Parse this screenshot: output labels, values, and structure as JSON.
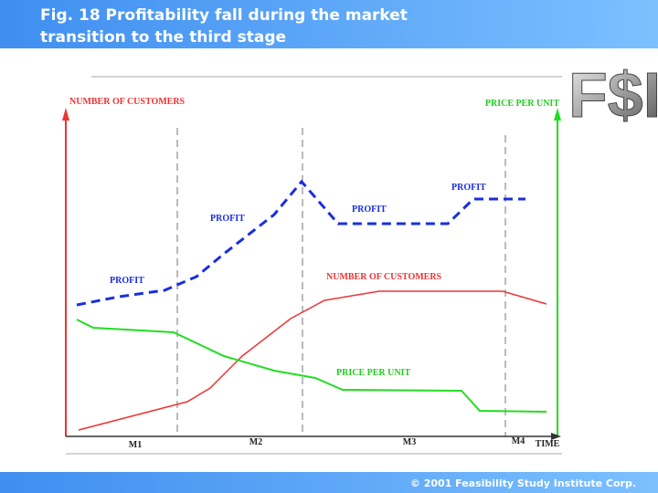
{
  "header": {
    "title_lines": [
      "Fig. 18  Profitability fall during the market",
      "transition to the third stage"
    ]
  },
  "logo": "F$I",
  "chart": {
    "y_label_left": "NUMBER OF CUSTOMERS",
    "y_label_right": "PRICE PER UNIT",
    "profit_labels": [
      "PROFIT",
      "PROFIT",
      "PROFIT",
      "PROFIT"
    ],
    "customers_label": "NUMBER OF CUSTOMERS",
    "price_label": "PRICE PER UNIT",
    "x_labels": [
      "M1",
      "M2",
      "M3",
      "M4"
    ],
    "x_title": "TIME"
  },
  "footer": {
    "copyright": "© 2001 Feasibility Study Institute Corp."
  }
}
